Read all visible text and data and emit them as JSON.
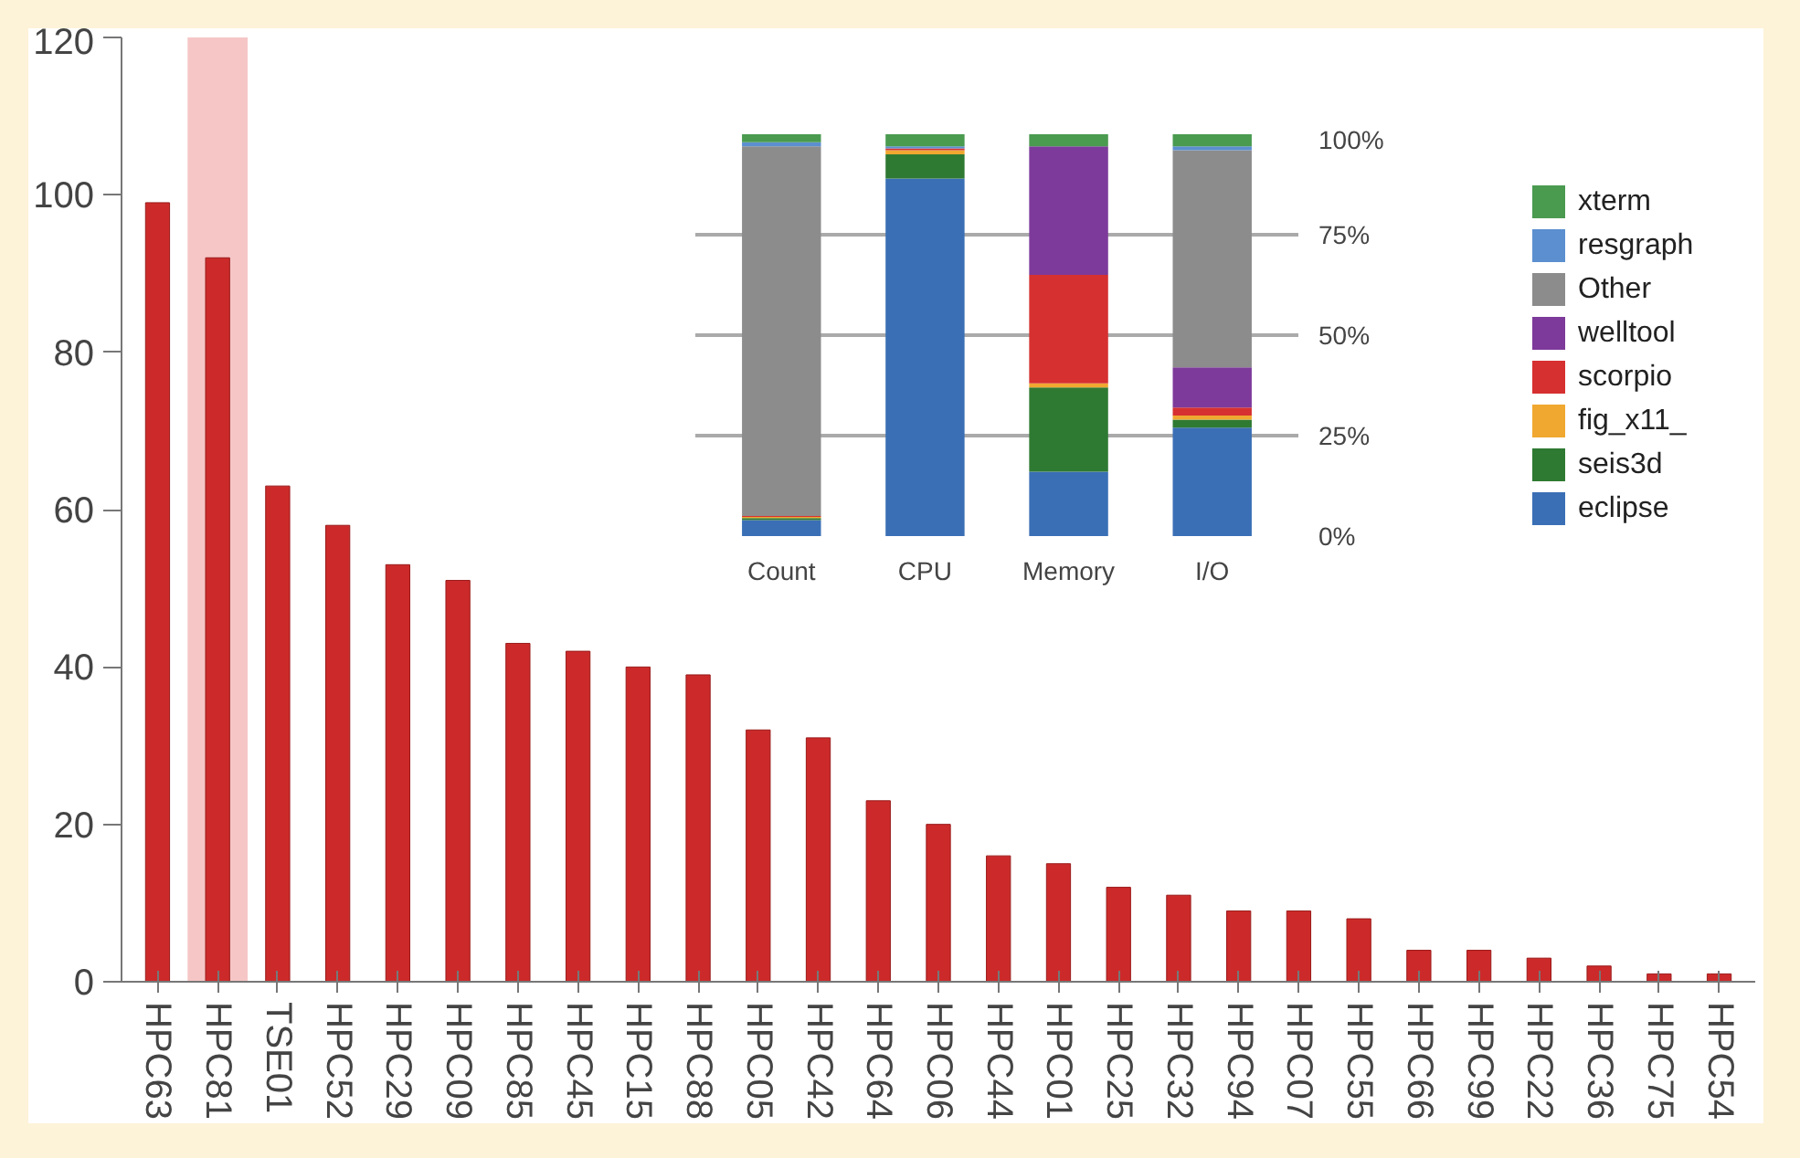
{
  "chart_data": [
    {
      "type": "bar",
      "categories": [
        "HPC63",
        "HPC81",
        "TSE01",
        "HPC52",
        "HPC29",
        "HPC09",
        "HPC85",
        "HPC45",
        "HPC15",
        "HPC88",
        "HPC05",
        "HPC42",
        "HPC64",
        "HPC06",
        "HPC44",
        "HPC01",
        "HPC25",
        "HPC32",
        "HPC94",
        "HPC07",
        "HPC55",
        "HPC66",
        "HPC99",
        "HPC22",
        "HPC36",
        "HPC75",
        "HPC54"
      ],
      "values": [
        99,
        92,
        63,
        58,
        53,
        51,
        43,
        42,
        40,
        39,
        32,
        31,
        23,
        20,
        16,
        15,
        12,
        11,
        9,
        9,
        8,
        4,
        4,
        3,
        2,
        1,
        1
      ],
      "color": "#cc2a2a",
      "ylim": [
        0,
        120
      ],
      "yticks": [
        0,
        20,
        40,
        60,
        80,
        100,
        120
      ],
      "bands": [
        {
          "axis": "x",
          "from": "HPC81",
          "to": "HPC81",
          "color": "#f4b8b8"
        }
      ],
      "grid": false
    },
    {
      "type": "bar",
      "stacked": true,
      "categories": [
        "Count",
        "CPU",
        "Memory",
        "I/O"
      ],
      "series": [
        {
          "name": "eclipse",
          "color": "#3a6fb5",
          "values": [
            4,
            89,
            16,
            27
          ]
        },
        {
          "name": "seis3d",
          "color": "#2f7a33",
          "values": [
            0.5,
            6,
            21,
            2
          ]
        },
        {
          "name": "fig_x11_",
          "color": "#f0a830",
          "values": [
            0.3,
            1,
            1,
            1
          ]
        },
        {
          "name": "scorpio",
          "color": "#d63030",
          "values": [
            0.2,
            0.5,
            27,
            2
          ]
        },
        {
          "name": "welltool",
          "color": "#7d3a9a",
          "values": [
            0,
            0,
            32,
            10
          ]
        },
        {
          "name": "Other",
          "color": "#8c8c8c",
          "values": [
            92,
            0,
            0,
            54
          ]
        },
        {
          "name": "resgraph",
          "color": "#5b8fcf",
          "values": [
            1,
            0.5,
            0,
            1
          ]
        },
        {
          "name": "xterm",
          "color": "#4a9a50",
          "values": [
            2,
            3,
            3,
            3
          ]
        }
      ],
      "ylim": [
        0,
        100
      ],
      "yticks": [
        {
          "value": 0,
          "label": "0%"
        },
        {
          "value": 25,
          "label": "25%"
        },
        {
          "value": 50,
          "label": "50%"
        },
        {
          "value": 75,
          "label": "75%"
        },
        {
          "value": 100,
          "label": "100%"
        }
      ],
      "grid": "y",
      "legend": "right"
    }
  ]
}
